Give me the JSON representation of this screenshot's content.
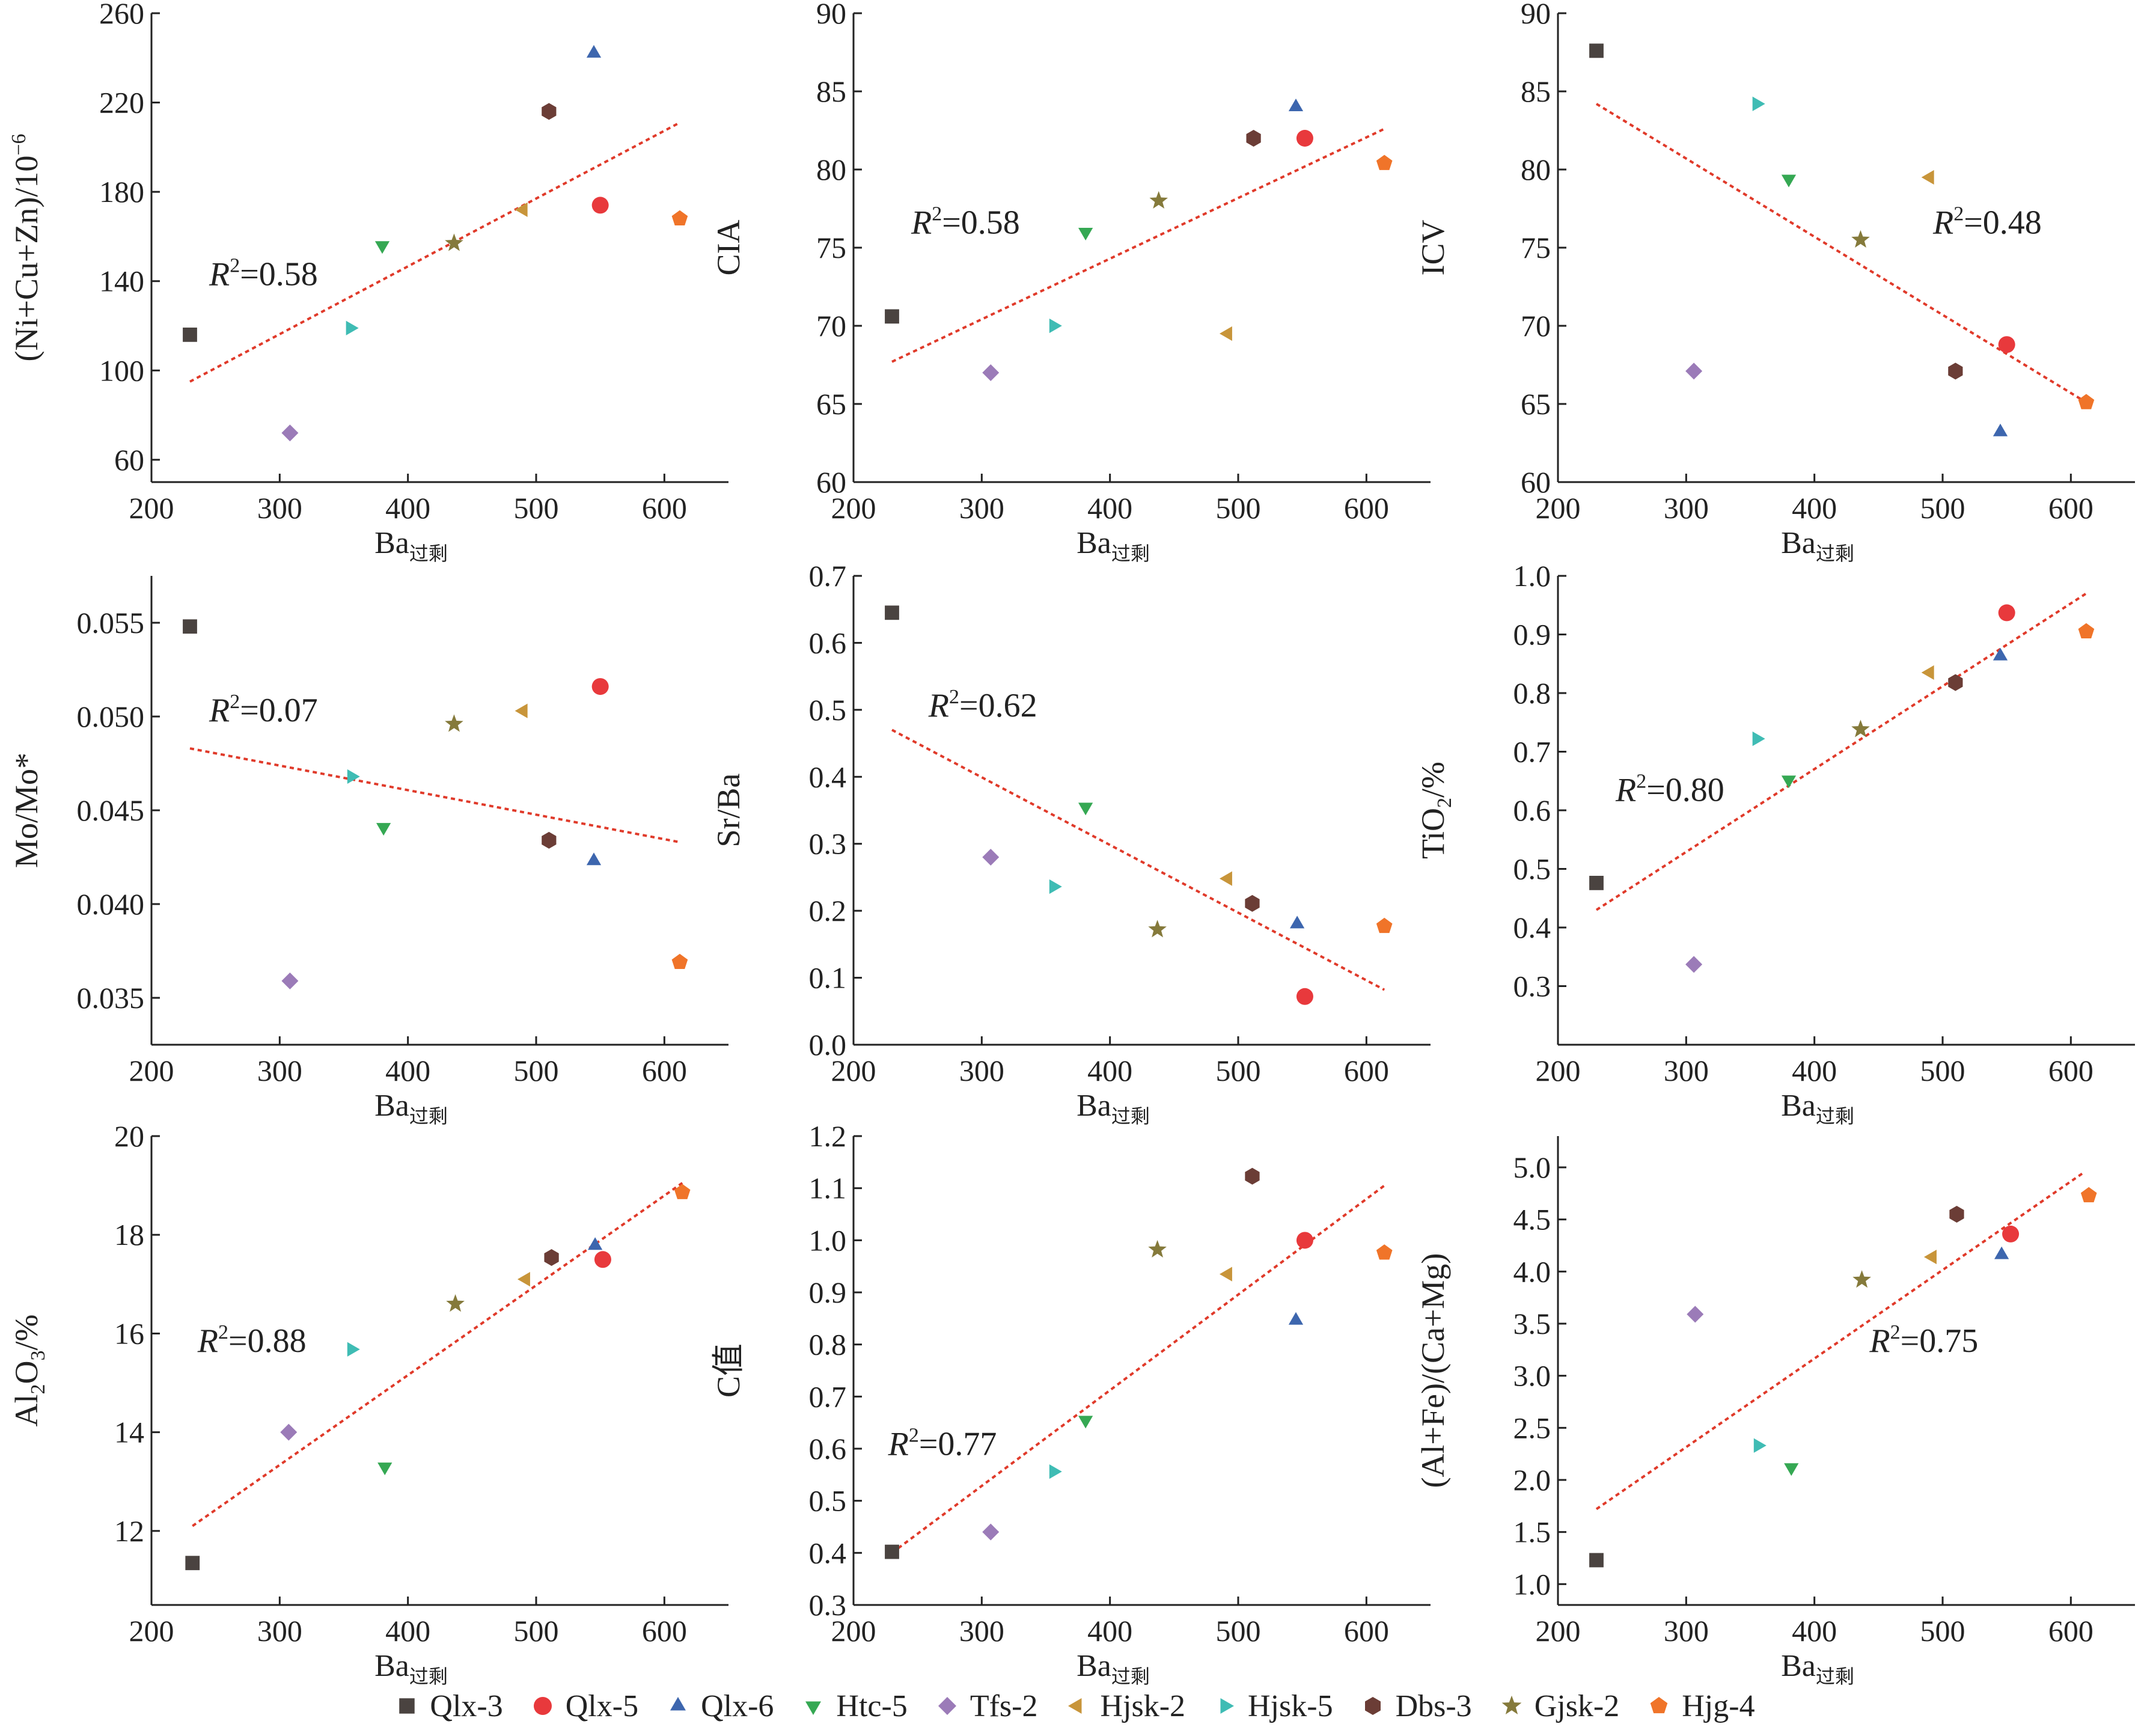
{
  "series_styles": [
    {
      "name": "Qlx-3",
      "color": "#4a4340",
      "marker": "square"
    },
    {
      "name": "Qlx-5",
      "color": "#e8393c",
      "marker": "circle"
    },
    {
      "name": "Qlx-6",
      "color": "#3d66ae",
      "marker": "triangle-up"
    },
    {
      "name": "Htc-5",
      "color": "#35a853",
      "marker": "triangle-down"
    },
    {
      "name": "Tfs-2",
      "color": "#9b7bb8",
      "marker": "diamond"
    },
    {
      "name": "Hjsk-2",
      "color": "#c8953a",
      "marker": "triangle-left"
    },
    {
      "name": "Hjsk-5",
      "color": "#3fbcb4",
      "marker": "triangle-right"
    },
    {
      "name": "Dbs-3",
      "color": "#6b3d36",
      "marker": "hexagon"
    },
    {
      "name": "Gjsk-2",
      "color": "#857a3b",
      "marker": "star"
    },
    {
      "name": "Hjg-4",
      "color": "#f07429",
      "marker": "pentagon"
    }
  ],
  "trendline_color": "#e03a2a",
  "chart_data": [
    {
      "type": "scatter",
      "xlabel": "Ba",
      "xlabel_sub": "过剩",
      "ylabel": "(Ni+Cu+Zn)/10",
      "ylabel_sup": "−6",
      "xlim": [
        200,
        650
      ],
      "ylim": [
        50,
        260
      ],
      "xticks": [
        "200",
        "300",
        "400",
        "500",
        "600"
      ],
      "yticks": [
        "60",
        "100",
        "140",
        "180",
        "220",
        "260"
      ],
      "r2_label": "=0.58",
      "points": [
        [
          230,
          116
        ],
        [
          550,
          174
        ],
        [
          545,
          242
        ],
        [
          380,
          156
        ],
        [
          308,
          72
        ],
        [
          490,
          172
        ],
        [
          355,
          119
        ],
        [
          510,
          216
        ],
        [
          436,
          157
        ],
        [
          612,
          168
        ]
      ],
      "trend": [
        [
          230,
          95
        ],
        [
          612,
          211
        ]
      ]
    },
    {
      "type": "scatter",
      "xlabel": "Ba",
      "xlabel_sub": "过剩",
      "ylabel": "CIA",
      "ylabel_sup": "",
      "xlim": [
        200,
        650
      ],
      "ylim": [
        60,
        90
      ],
      "xticks": [
        "200",
        "300",
        "400",
        "500",
        "600"
      ],
      "yticks": [
        "60",
        "65",
        "70",
        "75",
        "80",
        "85",
        "90"
      ],
      "r2_label": "=0.58",
      "points": [
        [
          230,
          70.6
        ],
        [
          552,
          82
        ],
        [
          545,
          84
        ],
        [
          381,
          76
        ],
        [
          307,
          67
        ],
        [
          492,
          69.5
        ],
        [
          356,
          70
        ],
        [
          512,
          82
        ],
        [
          438,
          78
        ],
        [
          614,
          80.4
        ]
      ],
      "trend": [
        [
          230,
          67.7
        ],
        [
          614,
          82.6
        ]
      ]
    },
    {
      "type": "scatter",
      "xlabel": "Ba",
      "xlabel_sub": "过剩",
      "ylabel": "ICV",
      "ylabel_sup": "",
      "xlim": [
        200,
        650
      ],
      "ylim": [
        60,
        90
      ],
      "xticks": [
        "200",
        "300",
        "400",
        "500",
        "600"
      ],
      "yticks": [
        "60",
        "65",
        "70",
        "75",
        "80",
        "85",
        "90"
      ],
      "r2_label": "=0.48",
      "points": [
        [
          230,
          87.6
        ],
        [
          550,
          68.8
        ],
        [
          545,
          63.2
        ],
        [
          380,
          79.4
        ],
        [
          306,
          67.1
        ],
        [
          490,
          79.5
        ],
        [
          355,
          84.2
        ],
        [
          510,
          67.1
        ],
        [
          436,
          75.5
        ],
        [
          612,
          65.1
        ]
      ],
      "trend": [
        [
          230,
          84.2
        ],
        [
          612,
          65.1
        ]
      ]
    },
    {
      "type": "scatter",
      "xlabel": "Ba",
      "xlabel_sub": "过剩",
      "ylabel": "Mo/Mo*",
      "ylabel_sup": "",
      "xlim": [
        200,
        650
      ],
      "ylim": [
        0.0325,
        0.0575
      ],
      "xticks": [
        "200",
        "300",
        "400",
        "500",
        "600"
      ],
      "yticks": [
        "0.035",
        "0.040",
        "0.045",
        "0.050",
        "0.055"
      ],
      "r2_label": "=0.07",
      "points": [
        [
          230,
          0.0548
        ],
        [
          550,
          0.0516
        ],
        [
          545,
          0.0423
        ],
        [
          381,
          0.0441
        ],
        [
          308,
          0.0359
        ],
        [
          490,
          0.0503
        ],
        [
          356,
          0.0468
        ],
        [
          510,
          0.0434
        ],
        [
          436,
          0.0496
        ],
        [
          612,
          0.0369
        ]
      ],
      "trend": [
        [
          230,
          0.0483
        ],
        [
          612,
          0.0433
        ]
      ]
    },
    {
      "type": "scatter",
      "xlabel": "Ba",
      "xlabel_sub": "过剩",
      "ylabel": "Sr/Ba",
      "ylabel_sup": "",
      "xlim": [
        200,
        650
      ],
      "ylim": [
        0.0,
        0.7
      ],
      "xticks": [
        "200",
        "300",
        "400",
        "500",
        "600"
      ],
      "yticks": [
        "0.0",
        "0.1",
        "0.2",
        "0.3",
        "0.4",
        "0.5",
        "0.6",
        "0.7"
      ],
      "r2_label": "=0.62",
      "points": [
        [
          230,
          0.645
        ],
        [
          552,
          0.072
        ],
        [
          546,
          0.18
        ],
        [
          381,
          0.355
        ],
        [
          307,
          0.28
        ],
        [
          492,
          0.248
        ],
        [
          356,
          0.236
        ],
        [
          511,
          0.211
        ],
        [
          437,
          0.172
        ],
        [
          614,
          0.177
        ]
      ],
      "trend": [
        [
          230,
          0.47
        ],
        [
          614,
          0.082
        ]
      ]
    },
    {
      "type": "scatter",
      "xlabel": "Ba",
      "xlabel_sub": "过剩",
      "ylabel": "TiO",
      "ylabel_sub": "2",
      "ylabel_tail": "/%",
      "xlim": [
        200,
        650
      ],
      "ylim": [
        0.2,
        1.0
      ],
      "xticks": [
        "200",
        "300",
        "400",
        "500",
        "600"
      ],
      "yticks": [
        "0.3",
        "0.4",
        "0.5",
        "0.6",
        "0.7",
        "0.8",
        "0.9",
        "1.0"
      ],
      "r2_label": "=0.80",
      "points": [
        [
          230,
          0.476
        ],
        [
          550,
          0.937
        ],
        [
          545,
          0.863
        ],
        [
          380,
          0.652
        ],
        [
          306,
          0.337
        ],
        [
          490,
          0.835
        ],
        [
          355,
          0.722
        ],
        [
          510,
          0.818
        ],
        [
          436,
          0.738
        ],
        [
          612,
          0.905
        ]
      ],
      "trend": [
        [
          230,
          0.43
        ],
        [
          612,
          0.97
        ]
      ]
    },
    {
      "type": "scatter",
      "xlabel": "Ba",
      "xlabel_sub": "过剩",
      "ylabel": "Al",
      "ylabel_sub": "2",
      "ylabel_mid": "O",
      "ylabel_sub2": "3",
      "ylabel_tail": "/%",
      "xlim": [
        200,
        650
      ],
      "ylim": [
        10.5,
        20
      ],
      "xticks": [
        "200",
        "300",
        "400",
        "500",
        "600"
      ],
      "yticks": [
        "12",
        "14",
        "16",
        "18",
        "20"
      ],
      "r2_label": "=0.88",
      "points": [
        [
          232,
          11.35
        ],
        [
          552,
          17.5
        ],
        [
          546,
          17.78
        ],
        [
          382,
          13.3
        ],
        [
          307,
          14.0
        ],
        [
          492,
          17.1
        ],
        [
          356,
          15.68
        ],
        [
          512,
          17.54
        ],
        [
          437,
          16.6
        ],
        [
          614,
          18.86
        ]
      ],
      "trend": [
        [
          232,
          12.1
        ],
        [
          614,
          19.05
        ]
      ]
    },
    {
      "type": "scatter",
      "xlabel": "Ba",
      "xlabel_sub": "过剩",
      "ylabel": "C值",
      "ylabel_sup": "",
      "xlim": [
        200,
        650
      ],
      "ylim": [
        0.3,
        1.2
      ],
      "xticks": [
        "200",
        "300",
        "400",
        "500",
        "600"
      ],
      "yticks": [
        "0.3",
        "0.4",
        "0.5",
        "0.6",
        "0.7",
        "0.8",
        "0.9",
        "1.0",
        "1.1",
        "1.2"
      ],
      "r2_label": "=0.77",
      "points": [
        [
          230,
          0.402
        ],
        [
          552,
          1.0
        ],
        [
          545,
          0.846
        ],
        [
          381,
          0.655
        ],
        [
          307,
          0.44
        ],
        [
          492,
          0.935
        ],
        [
          356,
          0.556
        ],
        [
          511,
          1.123
        ],
        [
          437,
          0.982
        ],
        [
          614,
          0.976
        ]
      ],
      "trend": [
        [
          230,
          0.4
        ],
        [
          614,
          1.105
        ]
      ]
    },
    {
      "type": "scatter",
      "xlabel": "Ba",
      "xlabel_sub": "过剩",
      "ylabel": "(Al+Fe)/(Ca+Mg)",
      "ylabel_sup": "",
      "xlim": [
        200,
        650
      ],
      "ylim": [
        0.8,
        5.3
      ],
      "xticks": [
        "200",
        "300",
        "400",
        "500",
        "600"
      ],
      "yticks": [
        "1.0",
        "1.5",
        "2.0",
        "2.5",
        "3.0",
        "3.5",
        "4.0",
        "4.5",
        "5.0"
      ],
      "r2_label": "=0.75",
      "points": [
        [
          230,
          1.23
        ],
        [
          553,
          4.36
        ],
        [
          546,
          4.16
        ],
        [
          382,
          2.12
        ],
        [
          307,
          3.59
        ],
        [
          492,
          4.14
        ],
        [
          356,
          2.33
        ],
        [
          511,
          4.55
        ],
        [
          437,
          3.92
        ],
        [
          614,
          4.73
        ]
      ],
      "trend": [
        [
          230,
          1.72
        ],
        [
          610,
          4.95
        ]
      ]
    }
  ]
}
